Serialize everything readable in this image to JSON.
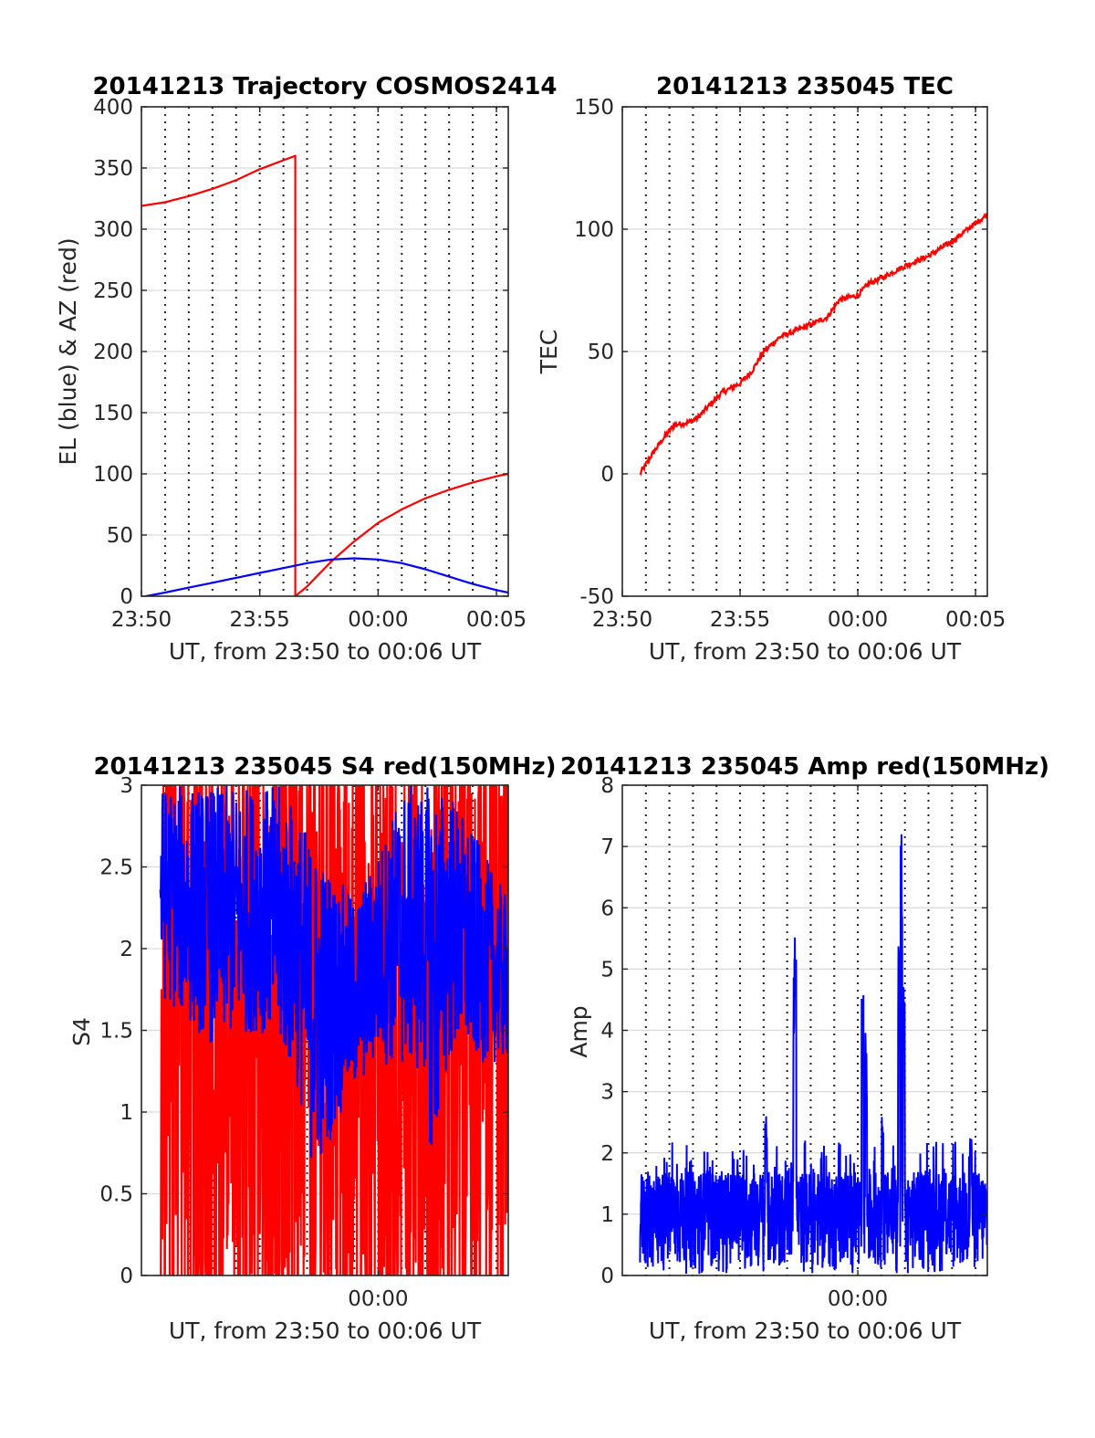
{
  "chart_data": [
    {
      "id": "trajectory",
      "type": "line",
      "title": "20141213 Trajectory COSMOS2414",
      "xlabel": "UT, from 23:50 to 00:06 UT",
      "ylabel": "EL (blue) & AZ (red)",
      "xlim": [
        0,
        15.5
      ],
      "ylim": [
        0,
        400
      ],
      "yticks": [
        0,
        50,
        100,
        150,
        200,
        250,
        300,
        350,
        400
      ],
      "xticks": [
        {
          "value": 0,
          "label": "23:50"
        },
        {
          "value": 5,
          "label": "23:55"
        },
        {
          "value": 10,
          "label": "00:00"
        },
        {
          "value": 15,
          "label": "00:05"
        }
      ],
      "grid": true,
      "series": [
        {
          "color": "#ff0000",
          "values": [
            [
              0,
              319
            ],
            [
              1,
              322
            ],
            [
              2,
              327
            ],
            [
              3,
              333
            ],
            [
              4,
              340
            ],
            [
              5,
              349
            ],
            [
              6.5,
              360
            ],
            [
              6.5,
              0
            ],
            [
              7,
              8
            ],
            [
              8,
              28
            ],
            [
              9,
              45
            ],
            [
              10,
              60
            ],
            [
              11,
              71
            ],
            [
              12,
              80
            ],
            [
              13,
              87
            ],
            [
              14,
              93
            ],
            [
              15,
              98
            ],
            [
              15.5,
              100
            ]
          ]
        },
        {
          "color": "#0000ff",
          "values": [
            [
              0.2,
              0
            ],
            [
              1,
              3
            ],
            [
              2,
              7
            ],
            [
              3,
              11
            ],
            [
              4,
              15
            ],
            [
              5,
              19
            ],
            [
              6,
              23
            ],
            [
              7,
              27
            ],
            [
              8,
              30
            ],
            [
              9,
              31
            ],
            [
              10,
              30
            ],
            [
              11,
              27
            ],
            [
              12,
              22
            ],
            [
              13,
              16
            ],
            [
              14,
              10
            ],
            [
              15,
              5
            ],
            [
              15.5,
              3
            ]
          ]
        }
      ]
    },
    {
      "id": "tec",
      "type": "line",
      "title": "20141213 235045 TEC",
      "xlabel": "UT, from 23:50 to 00:06 UT",
      "ylabel": "TEC",
      "xlim": [
        0,
        15.5
      ],
      "ylim": [
        -50,
        150
      ],
      "yticks": [
        -50,
        0,
        50,
        100,
        150
      ],
      "xticks": [
        {
          "value": 0,
          "label": "23:50"
        },
        {
          "value": 5,
          "label": "23:55"
        },
        {
          "value": 10,
          "label": "00:00"
        },
        {
          "value": 15,
          "label": "00:05"
        }
      ],
      "grid": true,
      "series": [
        {
          "color": "#ff0000",
          "values": [
            [
              0.75,
              0
            ],
            [
              1.2,
              7
            ],
            [
              1.7,
              14
            ],
            [
              2.2,
              20
            ],
            [
              2.8,
              21
            ],
            [
              3.2,
              23
            ],
            [
              3.7,
              28
            ],
            [
              4.2,
              33
            ],
            [
              5,
              37
            ],
            [
              5.5,
              42
            ],
            [
              6,
              50
            ],
            [
              6.7,
              56
            ],
            [
              7.5,
              59
            ],
            [
              8,
              61
            ],
            [
              8.7,
              64
            ],
            [
              9.2,
              71
            ],
            [
              10,
              73
            ],
            [
              10.5,
              78
            ],
            [
              11,
              80
            ],
            [
              12,
              85
            ],
            [
              12.5,
              87
            ],
            [
              13,
              89
            ],
            [
              14,
              95
            ],
            [
              14.8,
              101
            ],
            [
              15.5,
              106
            ]
          ]
        }
      ]
    },
    {
      "id": "s4",
      "type": "line",
      "title": "20141213 235045 S4 red(150MHz)",
      "xlabel": "UT, from 23:50 to 00:06 UT",
      "ylabel": "S4",
      "xlim": [
        0,
        15.5
      ],
      "ylim": [
        0,
        3
      ],
      "yticks": [
        0,
        0.5,
        1,
        1.5,
        2,
        2.5,
        3
      ],
      "yticklabels": [
        "0",
        "0.5",
        "1",
        "1.5",
        "2",
        "2.5",
        "3"
      ],
      "xticks": [
        {
          "value": 10,
          "label": "00:00"
        }
      ],
      "grid": true,
      "series": [
        {
          "color": "#ff0000",
          "kind": "noise",
          "range": [
            0.8,
            15.5
          ],
          "envelope_min": [
            [
              0,
              0
            ],
            [
              15.5,
              0
            ]
          ],
          "envelope_max": [
            [
              0,
              3
            ],
            [
              15.5,
              3
            ]
          ]
        },
        {
          "color": "#0000ff",
          "kind": "noise",
          "range": [
            0.8,
            15.5
          ],
          "envelope_min": [
            [
              0.8,
              1.7
            ],
            [
              3,
              1.4
            ],
            [
              5,
              1.5
            ],
            [
              6.5,
              1.2
            ],
            [
              7.3,
              0.6
            ],
            [
              8.5,
              1.0
            ],
            [
              10,
              1.3
            ],
            [
              12,
              1.2
            ],
            [
              12.3,
              0.6
            ],
            [
              13,
              1.3
            ],
            [
              15.5,
              1.3
            ]
          ],
          "envelope_max": [
            [
              0.8,
              3
            ],
            [
              6,
              3
            ],
            [
              7.5,
              2.6
            ],
            [
              9,
              2.3
            ],
            [
              10,
              2.6
            ],
            [
              11,
              3
            ],
            [
              13,
              3
            ],
            [
              15.5,
              2.3
            ]
          ]
        }
      ]
    },
    {
      "id": "amp",
      "type": "line",
      "title": "20141213 235045 Amp red(150MHz)",
      "xlabel": "UT, from 23:50 to 00:06 UT",
      "ylabel": "Amp",
      "xlim": [
        0,
        15.5
      ],
      "ylim": [
        0,
        8
      ],
      "yticks": [
        0,
        1,
        2,
        3,
        4,
        5,
        6,
        7,
        8
      ],
      "xticks": [
        {
          "value": 10,
          "label": "00:00"
        }
      ],
      "grid": true,
      "series": [
        {
          "color": "#0000ff",
          "kind": "noise",
          "range": [
            0.75,
            15.5
          ],
          "baseline_max": 1.7,
          "peaks": [
            [
              6.1,
              2.6
            ],
            [
              7.35,
              6.0
            ],
            [
              7.3,
              5.2
            ],
            [
              10.2,
              4.6
            ],
            [
              10.35,
              4.0
            ],
            [
              11.05,
              2.6
            ],
            [
              11.85,
              7.3
            ],
            [
              11.75,
              5.5
            ],
            [
              11.95,
              4.8
            ],
            [
              14.8,
              2.3
            ]
          ]
        }
      ]
    }
  ]
}
